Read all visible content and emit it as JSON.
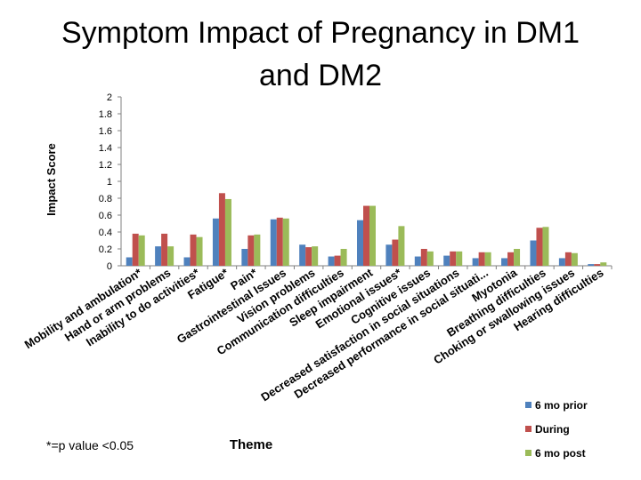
{
  "chart_data": {
    "type": "bar",
    "title_lines": [
      "Symptom Impact of Pregnancy in DM1",
      "and DM2"
    ],
    "ylabel": "Impact Score",
    "xlabel": "Theme",
    "ylim": [
      0,
      2
    ],
    "yticks": [
      "0",
      "0.2",
      "0.4",
      "0.6",
      "0.8",
      "1",
      "1.2",
      "1.4",
      "1.6",
      "1.8",
      "2"
    ],
    "note": "*=p value <0.05",
    "categories": [
      "Mobility and ambulation*",
      "Hand or arm problems",
      "Inability to do activities*",
      "Fatigue*",
      "Pain*",
      "Gastrointestinal Issues",
      "Vision problems",
      "Communication difficulties",
      "Sleep impairment",
      "Emotional issues*",
      "Cognitive issues",
      "Decreased satisfaction in social situations",
      "Decreased performance in social situati...",
      "Myotonia",
      "Breathing difficulties",
      "Choking or swallowing issues",
      "Hearing difficulties"
    ],
    "series": [
      {
        "name": "6 mo prior",
        "color": "#4f81bd",
        "values": [
          0.1,
          0.23,
          0.1,
          0.56,
          0.2,
          0.55,
          0.25,
          0.11,
          0.54,
          0.25,
          0.11,
          0.12,
          0.09,
          0.09,
          0.3,
          0.09,
          0.02
        ]
      },
      {
        "name": "During",
        "color": "#c0504d",
        "values": [
          0.38,
          0.38,
          0.37,
          0.86,
          0.36,
          0.57,
          0.22,
          0.12,
          0.71,
          0.31,
          0.2,
          0.17,
          0.16,
          0.16,
          0.45,
          0.16,
          0.02
        ]
      },
      {
        "name": "6 mo post",
        "color": "#9bbb59",
        "values": [
          0.36,
          0.23,
          0.34,
          0.79,
          0.37,
          0.56,
          0.23,
          0.2,
          0.71,
          0.47,
          0.17,
          0.17,
          0.16,
          0.2,
          0.46,
          0.15,
          0.04
        ]
      }
    ],
    "legend_position": "bottom-right"
  }
}
